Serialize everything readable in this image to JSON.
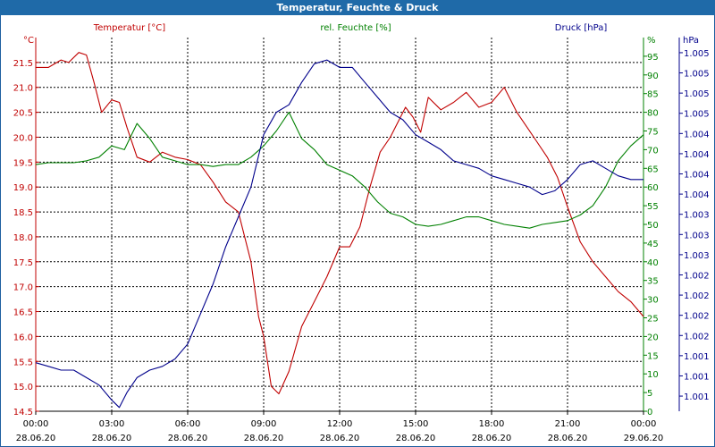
{
  "window": {
    "title": "Temperatur, Feuchte & Druck"
  },
  "colors": {
    "temperature": "#c00000",
    "humidity": "#008000",
    "pressure": "#00008b",
    "grid": "#000000",
    "titlebar": "#1f6aa8"
  },
  "chart_data": {
    "type": "line",
    "title": "Temperatur, Feuchte & Druck",
    "x": {
      "tick_times": [
        "00:00",
        "03:00",
        "06:00",
        "09:00",
        "12:00",
        "15:00",
        "18:00",
        "21:00",
        "00:00"
      ],
      "tick_dates": [
        "28.06.20",
        "28.06.20",
        "28.06.20",
        "28.06.20",
        "28.06.20",
        "28.06.20",
        "28.06.20",
        "28.06.20",
        "29.06.20"
      ],
      "range_hours": [
        0,
        24
      ]
    },
    "axes": {
      "temperature": {
        "label": "Temperatur [°C]",
        "unit": "°C",
        "range": [
          14.5,
          22.0
        ],
        "ticks": [
          "14.5",
          "15.0",
          "15.5",
          "16.0",
          "16.5",
          "17.0",
          "17.5",
          "18.0",
          "18.5",
          "19.0",
          "19.5",
          "20.0",
          "20.5",
          "21.0",
          "21.5"
        ]
      },
      "humidity": {
        "label": "rel. Feuchte [%]",
        "unit": "%",
        "range": [
          0,
          100
        ],
        "ticks": [
          "0",
          "5",
          "10",
          "15",
          "20",
          "25",
          "30",
          "35",
          "40",
          "45",
          "50",
          "55",
          "60",
          "65",
          "70",
          "75",
          "80",
          "85",
          "90",
          "95"
        ]
      },
      "pressure": {
        "label": "Druck [hPa]",
        "unit": "hPa",
        "range": [
          1000.5,
          1005.5
        ],
        "ticks": [
          "1.001",
          "1.001",
          "1.001",
          "1.002",
          "1.002",
          "1.002",
          "1.002",
          "1.003",
          "1.003",
          "1.003",
          "1.004",
          "1.004",
          "1.004",
          "1.004",
          "1.005",
          "1.005",
          "1.005",
          "1.005"
        ]
      }
    },
    "series": [
      {
        "name": "Temperatur",
        "axis": "temperature",
        "hours": [
          0,
          0.5,
          1,
          1.3,
          1.7,
          2,
          2.3,
          2.6,
          3,
          3.3,
          3.6,
          4,
          4.5,
          5,
          5.5,
          6,
          6.5,
          7,
          7.5,
          8,
          8.5,
          8.8,
          9,
          9.3,
          9.6,
          10,
          10.5,
          11,
          11.5,
          12,
          12.4,
          12.8,
          13.2,
          13.6,
          14,
          14.3,
          14.6,
          14.9,
          15.2,
          15.5,
          16,
          16.5,
          17,
          17.5,
          18,
          18.5,
          19,
          19.4,
          19.8,
          20.2,
          20.6,
          21,
          21.5,
          22,
          22.5,
          23,
          23.5,
          24
        ],
        "values": [
          21.4,
          21.4,
          21.55,
          21.5,
          21.7,
          21.65,
          21.1,
          20.5,
          20.75,
          20.7,
          20.2,
          19.6,
          19.5,
          19.7,
          19.6,
          19.55,
          19.45,
          19.1,
          18.7,
          18.5,
          17.5,
          16.4,
          16.0,
          15.0,
          14.85,
          15.3,
          16.2,
          16.7,
          17.2,
          17.8,
          17.8,
          18.2,
          19.0,
          19.7,
          20.0,
          20.3,
          20.6,
          20.4,
          20.1,
          20.8,
          20.55,
          20.7,
          20.9,
          20.6,
          20.7,
          21.0,
          20.5,
          20.2,
          19.9,
          19.6,
          19.2,
          18.6,
          17.9,
          17.5,
          17.2,
          16.9,
          16.7,
          16.4
        ]
      },
      {
        "name": "rel. Feuchte",
        "axis": "humidity",
        "hours": [
          0,
          0.5,
          1,
          1.5,
          2,
          2.5,
          3,
          3.5,
          4,
          4.5,
          5,
          5.5,
          6,
          6.5,
          7,
          7.5,
          8,
          8.5,
          9,
          9.5,
          10,
          10.5,
          11,
          11.5,
          12,
          12.5,
          13,
          13.5,
          14,
          14.5,
          15,
          15.5,
          16,
          16.5,
          17,
          17.5,
          18,
          18.5,
          19,
          19.5,
          20,
          20.5,
          21,
          21.5,
          22,
          22.5,
          23,
          23.5,
          24
        ],
        "values": [
          66,
          66.5,
          66.5,
          66.5,
          67,
          68,
          71,
          70,
          77,
          73,
          68,
          67,
          66,
          66,
          65.5,
          66,
          66,
          68,
          71,
          75,
          80,
          73,
          70,
          66,
          64.5,
          63,
          60,
          56,
          53,
          52,
          50,
          49.5,
          50,
          51,
          52,
          52,
          51,
          50,
          49.5,
          49,
          50,
          50.5,
          51,
          52.5,
          55,
          60,
          67,
          71,
          74
        ]
      },
      {
        "name": "Druck",
        "axis": "pressure",
        "hours": [
          0,
          0.5,
          1,
          1.5,
          2,
          2.5,
          3,
          3.3,
          3.6,
          4,
          4.5,
          5,
          5.5,
          6,
          6.5,
          7,
          7.5,
          8,
          8.5,
          9,
          9.5,
          10,
          10.5,
          11,
          11.5,
          12,
          12.5,
          13,
          13.5,
          14,
          14.5,
          15,
          15.5,
          16,
          16.5,
          17,
          17.5,
          18,
          18.5,
          19,
          19.5,
          20,
          20.5,
          21,
          21.5,
          22,
          22.5,
          23,
          23.5,
          24
        ],
        "values": [
          1001.15,
          1001.1,
          1001.05,
          1001.05,
          1000.95,
          1000.85,
          1000.65,
          1000.55,
          1000.75,
          1000.95,
          1001.05,
          1001.1,
          1001.2,
          1001.4,
          1001.8,
          1002.2,
          1002.7,
          1003.1,
          1003.5,
          1004.2,
          1004.5,
          1004.6,
          1004.9,
          1005.15,
          1005.2,
          1005.1,
          1005.1,
          1004.9,
          1004.7,
          1004.5,
          1004.4,
          1004.2,
          1004.1,
          1004.0,
          1003.85,
          1003.8,
          1003.75,
          1003.65,
          1003.6,
          1003.55,
          1003.5,
          1003.4,
          1003.45,
          1003.6,
          1003.8,
          1003.85,
          1003.75,
          1003.65,
          1003.6,
          1003.6
        ]
      }
    ]
  }
}
